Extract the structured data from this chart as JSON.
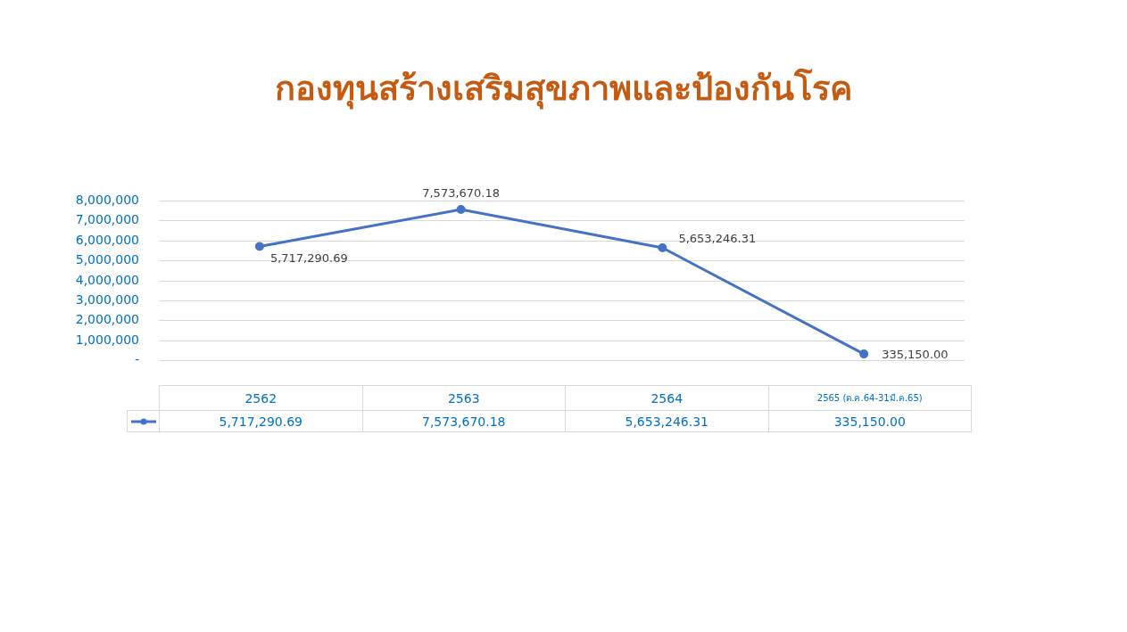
{
  "chart_data": {
    "type": "line",
    "title": "กองทุนสร้างเสริมสุขภาพและป้องกันโรค",
    "categories": [
      "2562",
      "2563",
      "2564",
      "2565 (ต.ค.64-31มี.ค.65)"
    ],
    "series": [
      {
        "color": "#4472c4",
        "values": [
          5717290.69,
          7573670.18,
          5653246.31,
          335150.0
        ],
        "value_labels": [
          "5,717,290.69",
          "7,573,670.18",
          "5,653,246.31",
          "335,150.00"
        ]
      }
    ],
    "ylim": [
      0,
      8000000
    ],
    "yticks": [
      {
        "value": 0,
        "label": "-"
      },
      {
        "value": 1000000,
        "label": "1,000,000"
      },
      {
        "value": 2000000,
        "label": "2,000,000"
      },
      {
        "value": 3000000,
        "label": "3,000,000"
      },
      {
        "value": 4000000,
        "label": "4,000,000"
      },
      {
        "value": 5000000,
        "label": "5,000,000"
      },
      {
        "value": 6000000,
        "label": "6,000,000"
      },
      {
        "value": 7000000,
        "label": "7,000,000"
      },
      {
        "value": 8000000,
        "label": "8,000,000"
      }
    ],
    "grid": "y",
    "marker": "circle",
    "line_style": "solid"
  }
}
